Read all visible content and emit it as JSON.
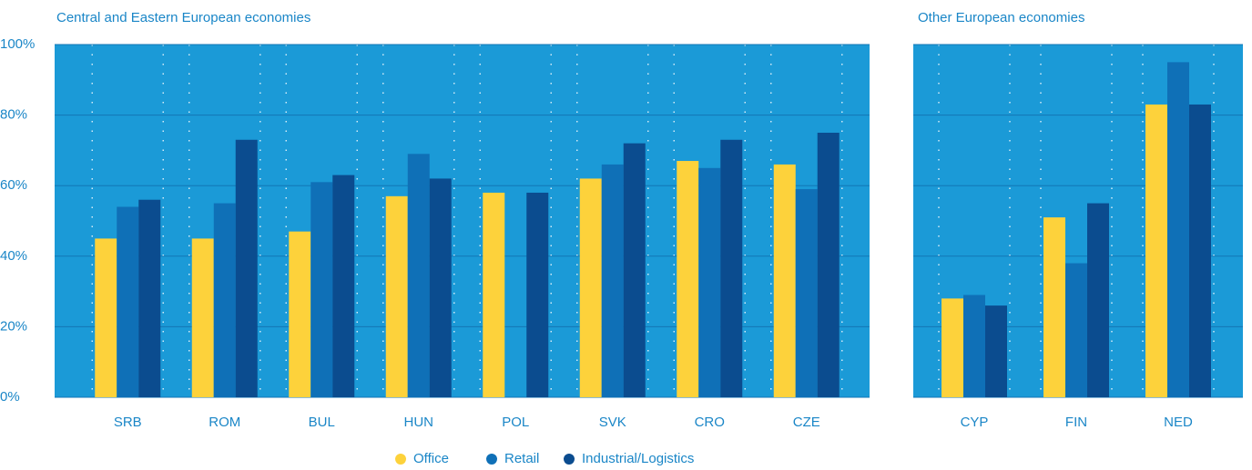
{
  "chart_data": [
    {
      "type": "bar",
      "title": "Central and Eastern European economies",
      "categories": [
        "SRB",
        "ROM",
        "BUL",
        "HUN",
        "POL",
        "SVK",
        "CRO",
        "CZE"
      ],
      "series": [
        {
          "name": "Office",
          "color": "#fdd23b",
          "values": [
            45,
            45,
            47,
            57,
            58,
            62,
            67,
            66
          ]
        },
        {
          "name": "Retail",
          "color": "#0f70b7",
          "values": [
            54,
            55,
            61,
            69,
            null,
            66,
            65,
            59
          ]
        },
        {
          "name": "Industrial/Logistics",
          "color": "#0b4c8f",
          "values": [
            56,
            73,
            63,
            62,
            58,
            72,
            73,
            75
          ]
        }
      ],
      "ylim": [
        0,
        100
      ],
      "yticks": [
        {
          "value": 0,
          "label": "0%"
        },
        {
          "value": 20,
          "label": "20%"
        },
        {
          "value": 40,
          "label": "40%"
        },
        {
          "value": 60,
          "label": "60%"
        },
        {
          "value": 80,
          "label": "80%"
        },
        {
          "value": 100,
          "label": "100%"
        }
      ],
      "grid": true
    },
    {
      "type": "bar",
      "title": "Other European economies",
      "categories": [
        "CYP",
        "FIN",
        "NED"
      ],
      "series": [
        {
          "color": "#fdd23b",
          "values": [
            28,
            51,
            83
          ]
        },
        {
          "color": "#0f70b7",
          "values": [
            29,
            38,
            95
          ]
        },
        {
          "color": "#0b4c8f",
          "values": [
            26,
            55,
            83
          ]
        }
      ],
      "ylim": [
        0,
        100
      ],
      "yticks": [
        0,
        20,
        40,
        60,
        80,
        100
      ],
      "grid": true
    }
  ]
}
